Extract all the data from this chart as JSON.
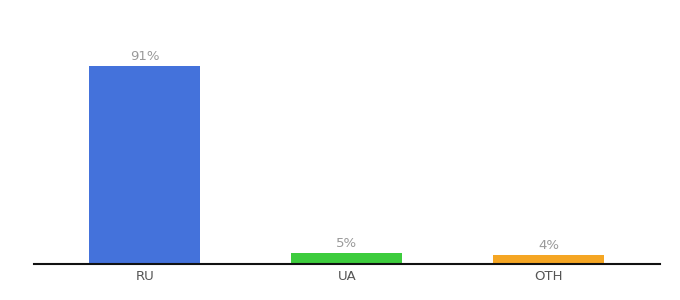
{
  "categories": [
    "RU",
    "UA",
    "OTH"
  ],
  "values": [
    91,
    5,
    4
  ],
  "bar_colors": [
    "#4472db",
    "#3dcc3d",
    "#f5a623"
  ],
  "labels": [
    "91%",
    "5%",
    "4%"
  ],
  "ylim": [
    0,
    105
  ],
  "background_color": "#ffffff",
  "label_color": "#999999",
  "xlabel_color": "#555555",
  "bar_width": 0.55,
  "label_fontsize": 9.5,
  "tick_fontsize": 9.5,
  "spine_color": "#111111",
  "x_positions": [
    0,
    1,
    2
  ]
}
